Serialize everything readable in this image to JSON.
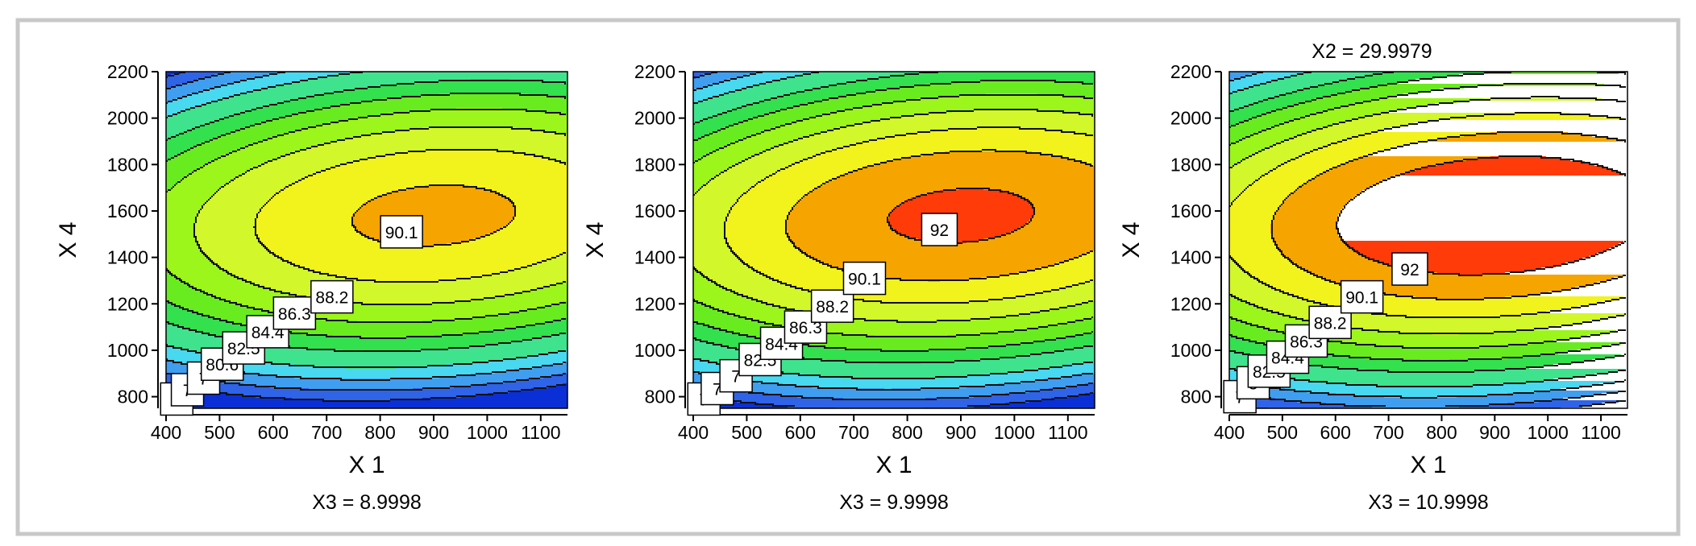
{
  "figure": {
    "frame_color": "#c8c8c8",
    "global_title": "X2 = 29.9979"
  },
  "chart_data": [
    {
      "type": "contour",
      "xlabel": "X 1",
      "ylabel": "X 4",
      "caption": "X3 = 8.9998",
      "xlim": [
        400,
        1150
      ],
      "ylim": [
        750,
        2200
      ],
      "xticks": [
        "400",
        "500",
        "600",
        "700",
        "800",
        "900",
        "1000",
        "1100"
      ],
      "yticks": [
        "800",
        "1000",
        "1200",
        "1400",
        "1600",
        "1800",
        "2000",
        "2200"
      ],
      "surface": {
        "peak_x": 900,
        "peak_y": 1580,
        "peak_value": 90.6
      },
      "contour_labels": [
        {
          "text": "90.1",
          "x": 840,
          "y": 1510
        },
        {
          "text": "88.2",
          "x": 710,
          "y": 1230
        },
        {
          "text": "86.3",
          "x": 640,
          "y": 1160
        },
        {
          "text": "84.4",
          "x": 590,
          "y": 1080
        },
        {
          "text": "82.5",
          "x": 545,
          "y": 1010
        },
        {
          "text": "80.6",
          "x": 505,
          "y": 940
        },
        {
          "text": "7",
          "x": 470,
          "y": 880
        },
        {
          "text": "7",
          "x": 440,
          "y": 830
        },
        {
          "text": "7",
          "x": 420,
          "y": 790
        }
      ]
    },
    {
      "type": "contour",
      "xlabel": "X 1",
      "ylabel": "X 4",
      "caption": "X3 = 9.9998",
      "xlim": [
        400,
        1150
      ],
      "ylim": [
        750,
        2200
      ],
      "xticks": [
        "400",
        "500",
        "600",
        "700",
        "800",
        "900",
        "1000",
        "1100"
      ],
      "yticks": [
        "800",
        "1000",
        "1200",
        "1400",
        "1600",
        "1800",
        "2000",
        "2200"
      ],
      "surface": {
        "peak_x": 900,
        "peak_y": 1580,
        "peak_value": 92.4
      },
      "contour_labels": [
        {
          "text": "92",
          "x": 860,
          "y": 1520
        },
        {
          "text": "90.1",
          "x": 720,
          "y": 1310
        },
        {
          "text": "88.2",
          "x": 660,
          "y": 1190
        },
        {
          "text": "86.3",
          "x": 610,
          "y": 1100
        },
        {
          "text": "84.4",
          "x": 565,
          "y": 1030
        },
        {
          "text": "82.5",
          "x": 525,
          "y": 960
        },
        {
          "text": "7",
          "x": 480,
          "y": 890
        },
        {
          "text": "7",
          "x": 445,
          "y": 835
        },
        {
          "text": "7",
          "x": 420,
          "y": 790
        }
      ]
    },
    {
      "type": "contour",
      "xlabel": "X 1",
      "ylabel": "X 4",
      "caption": "X3 = 10.9998",
      "xlim": [
        400,
        1150
      ],
      "ylim": [
        750,
        2200
      ],
      "xticks": [
        "400",
        "500",
        "600",
        "700",
        "800",
        "900",
        "1000",
        "1100"
      ],
      "yticks": [
        "800",
        "1000",
        "1200",
        "1400",
        "1600",
        "1800",
        "2000",
        "2200"
      ],
      "surface": {
        "peak_x": 900,
        "peak_y": 1580,
        "peak_value": 93.9
      },
      "contour_labels": [
        {
          "text": "92",
          "x": 740,
          "y": 1350
        },
        {
          "text": "90.1",
          "x": 650,
          "y": 1230
        },
        {
          "text": "88.2",
          "x": 590,
          "y": 1120
        },
        {
          "text": "86.3",
          "x": 545,
          "y": 1040
        },
        {
          "text": "84.4",
          "x": 510,
          "y": 970
        },
        {
          "text": "82.5",
          "x": 475,
          "y": 910
        },
        {
          "text": "8",
          "x": 445,
          "y": 860
        },
        {
          "text": "7",
          "x": 420,
          "y": 800
        }
      ]
    }
  ]
}
